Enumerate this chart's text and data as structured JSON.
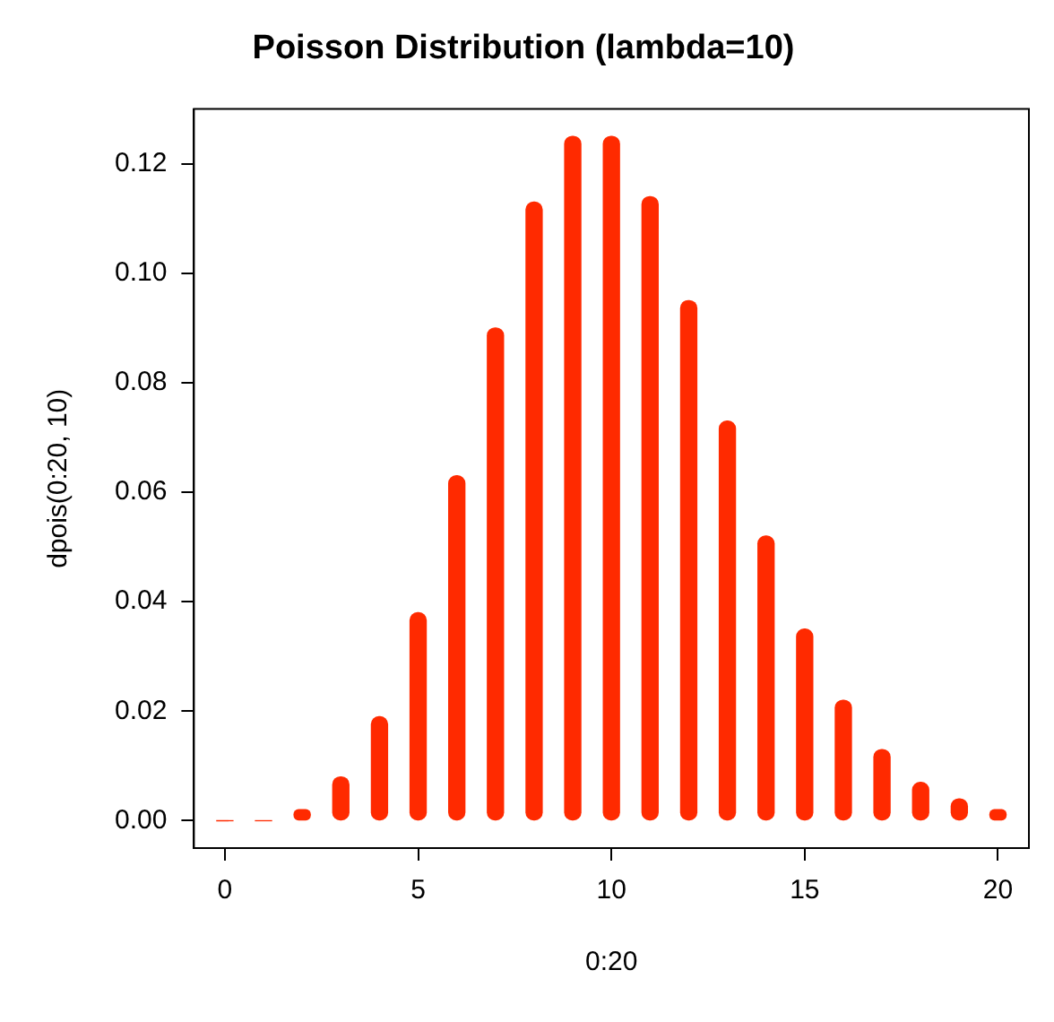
{
  "chart_data": {
    "type": "bar",
    "title": "Poisson Distribution (lambda=10)",
    "xlabel": "0:20",
    "ylabel": "dpois(0:20, 10)",
    "x": [
      0,
      1,
      2,
      3,
      4,
      5,
      6,
      7,
      8,
      9,
      10,
      11,
      12,
      13,
      14,
      15,
      16,
      17,
      18,
      19,
      20
    ],
    "values": [
      0.0,
      0.0,
      0.002,
      0.008,
      0.019,
      0.038,
      0.063,
      0.09,
      0.113,
      0.125,
      0.125,
      0.114,
      0.095,
      0.073,
      0.052,
      0.035,
      0.022,
      0.013,
      0.007,
      0.004,
      0.002
    ],
    "color": "#ff2a00",
    "xlim": [
      -0.8,
      20.8
    ],
    "xticks": [
      0,
      5,
      10,
      15,
      20
    ],
    "ylim": [
      -0.005,
      0.13
    ],
    "yticks": [
      {
        "value": 0,
        "label": "0.00"
      },
      {
        "value": 0.02,
        "label": "0.02"
      },
      {
        "value": 0.04,
        "label": "0.04"
      },
      {
        "value": 0.06,
        "label": "0.06"
      },
      {
        "value": 0.08,
        "label": "0.08"
      },
      {
        "value": 0.1,
        "label": "0.10"
      },
      {
        "value": 0.12,
        "label": "0.12"
      }
    ],
    "grid": false,
    "legend": false
  }
}
